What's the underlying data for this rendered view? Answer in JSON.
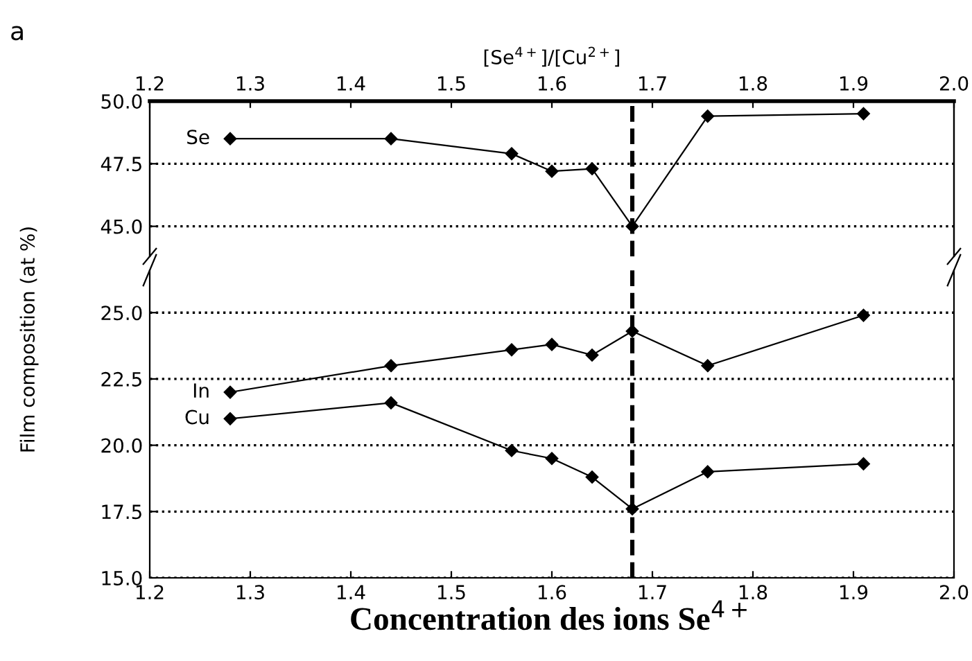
{
  "chart_data": [
    {
      "type": "line",
      "ylabel": "Film composition (at %)",
      "x2label": "[Se$^{4+}$]/[Cu$^{2+}$]",
      "annotations": [
        "a"
      ],
      "x": [
        1.28,
        1.44,
        1.56,
        1.6,
        1.64,
        1.68,
        1.755,
        1.91
      ],
      "series": [
        {
          "name": "Se",
          "color": "#000000",
          "values": [
            48.5,
            48.5,
            47.9,
            47.2,
            47.3,
            45.0,
            49.4,
            49.5
          ]
        }
      ],
      "xlim": [
        1.2,
        2.0
      ],
      "x2lim": [
        1.2,
        2.0
      ],
      "x2ticks": [
        1.2,
        1.3,
        1.4,
        1.5,
        1.6,
        1.7,
        1.8,
        1.9,
        {
          "value": 2,
          "label": "2.0"
        }
      ],
      "ylim": [
        43.8,
        50.0
      ],
      "yticks": [
        {
          "value": 45,
          "label": "45.0"
        },
        47.5,
        {
          "value": 50,
          "label": "50.0"
        }
      ],
      "tick_labels": "y",
      "grid": "y",
      "marker": "diamond",
      "line_style": "solid",
      "legend": false,
      "ref_lines": [
        {
          "axis": "x",
          "value": 1.68,
          "color": "#000000",
          "line_style": "dashed"
        }
      ]
    },
    {
      "type": "line",
      "xlabel": "Concentration des ions Se$^{4+}$",
      "x": [
        1.28,
        1.44,
        1.56,
        1.6,
        1.64,
        1.68,
        1.755,
        1.91
      ],
      "series": [
        {
          "name": "In",
          "color": "#000000",
          "values": [
            22.0,
            23.0,
            23.6,
            23.8,
            23.4,
            24.3,
            23.0,
            24.9
          ]
        },
        {
          "name": "Cu",
          "color": "#000000",
          "values": [
            21.0,
            21.6,
            19.8,
            19.5,
            18.8,
            17.6,
            19.0,
            19.3
          ]
        }
      ],
      "xlim": [
        1.2,
        2.0
      ],
      "xticks": [
        1.2,
        1.3,
        1.4,
        1.5,
        1.6,
        1.7,
        1.8,
        1.9,
        {
          "value": 2,
          "label": "2.0"
        }
      ],
      "ylim": [
        15.0,
        26.6
      ],
      "yticks": [
        {
          "value": 15,
          "label": "15.0"
        },
        17.5,
        {
          "value": 20,
          "label": "20.0"
        },
        22.5,
        {
          "value": 25,
          "label": "25.0"
        }
      ],
      "grid": "y",
      "marker": "diamond",
      "line_style": "solid",
      "legend": false,
      "ref_lines": [
        {
          "axis": "x",
          "value": 1.68,
          "color": "#000000",
          "line_style": "dashed"
        }
      ]
    }
  ]
}
